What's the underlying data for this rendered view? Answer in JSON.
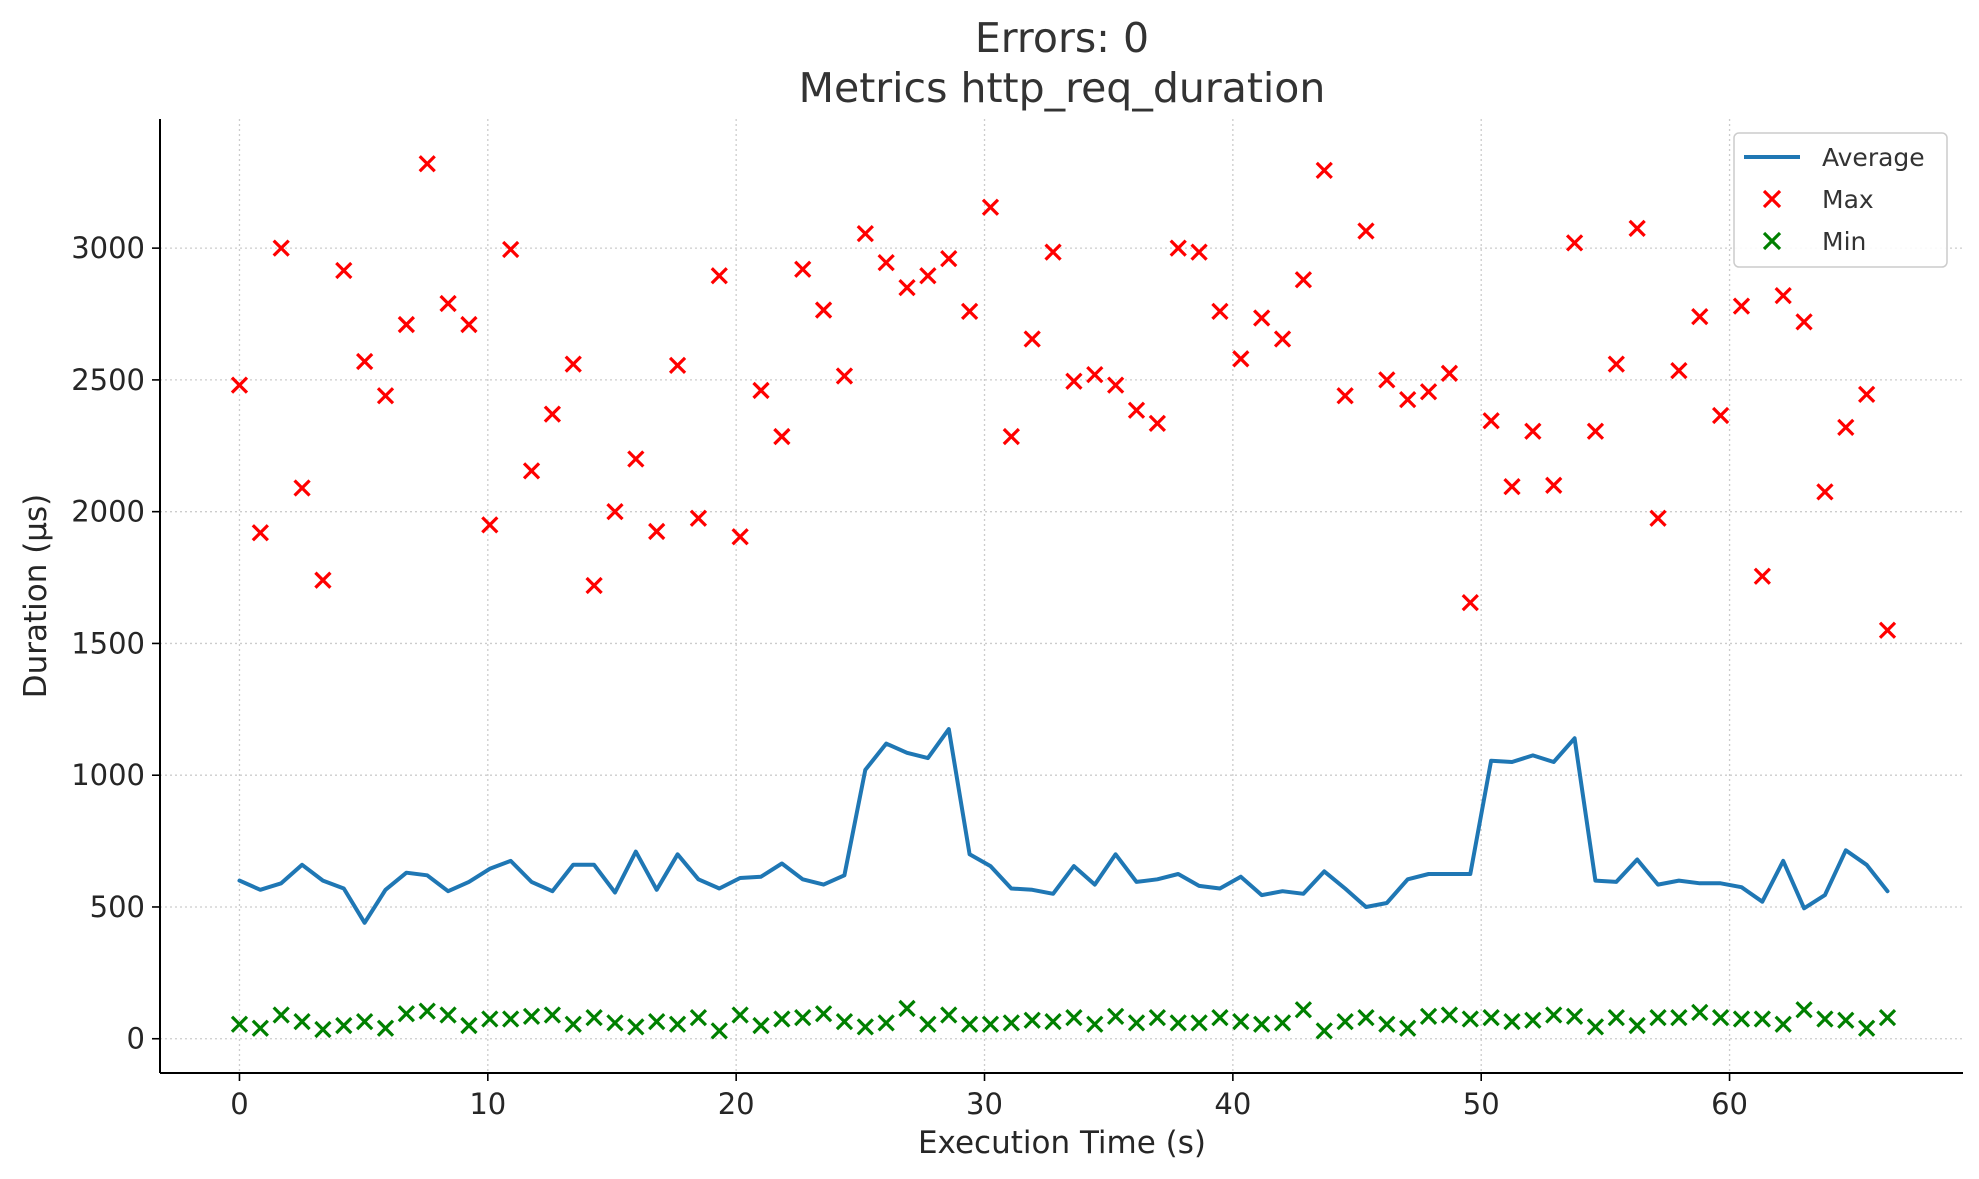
{
  "chart_data": {
    "type": "line",
    "title": "Errors: 0",
    "subtitle": "Metrics http_req_duration",
    "xlabel": "Execution Time (s)",
    "ylabel": "Duration (µs)",
    "xlim": [
      -3.2,
      69.4
    ],
    "ylim": [
      -130,
      3490
    ],
    "xticks": [
      0,
      10,
      20,
      30,
      40,
      50,
      60
    ],
    "yticks": [
      0,
      500,
      1000,
      1500,
      2000,
      2500,
      3000
    ],
    "grid": true,
    "legend_position": "top-right",
    "x": [
      0,
      0.84,
      1.68,
      2.52,
      3.36,
      4.2,
      5.04,
      5.88,
      6.72,
      7.56,
      8.4,
      9.24,
      10.08,
      10.92,
      11.76,
      12.6,
      13.44,
      14.28,
      15.12,
      15.96,
      16.8,
      17.64,
      18.48,
      19.32,
      20.16,
      21.0,
      21.84,
      22.68,
      23.52,
      24.36,
      25.2,
      26.04,
      26.88,
      27.72,
      28.56,
      29.4,
      30.24,
      31.08,
      31.92,
      32.76,
      33.6,
      34.44,
      35.28,
      36.12,
      36.96,
      37.8,
      38.64,
      39.48,
      40.32,
      41.16,
      42.0,
      42.84,
      43.68,
      44.52,
      45.36,
      46.2,
      47.04,
      47.88,
      48.72,
      49.56,
      50.4,
      51.24,
      52.08,
      52.92,
      53.76,
      54.6,
      55.44,
      56.28,
      57.12,
      57.96,
      58.8,
      59.64,
      60.48,
      61.32,
      62.16,
      63.0,
      63.84,
      64.68,
      65.52,
      66.36
    ],
    "series": [
      {
        "name": "Average",
        "type": "line",
        "color": "#1f77b4",
        "values": [
          600,
          565,
          590,
          660,
          600,
          570,
          440,
          565,
          630,
          620,
          560,
          595,
          645,
          675,
          595,
          560,
          660,
          660,
          555,
          710,
          565,
          700,
          605,
          570,
          610,
          615,
          665,
          605,
          585,
          620,
          1020,
          1120,
          1085,
          1065,
          1175,
          700,
          655,
          570,
          565,
          550,
          655,
          585,
          700,
          595,
          605,
          625,
          580,
          570,
          615,
          545,
          560,
          550,
          635,
          570,
          500,
          515,
          605,
          625,
          625,
          625,
          1055,
          1050,
          1075,
          1050,
          1140,
          600,
          595,
          680,
          585,
          600,
          590,
          590,
          575,
          520,
          675,
          495,
          545,
          715,
          660,
          560
        ]
      },
      {
        "name": "Max",
        "type": "scatter",
        "marker": "x",
        "color": "#ff0000",
        "values": [
          2480,
          1920,
          3000,
          2090,
          1740,
          2915,
          2570,
          2440,
          2710,
          3320,
          2790,
          2710,
          1950,
          2995,
          2155,
          2370,
          2560,
          1720,
          2000,
          2200,
          1925,
          2555,
          1975,
          2895,
          1905,
          2460,
          2285,
          2920,
          2765,
          2515,
          3055,
          2945,
          2850,
          2895,
          2960,
          2760,
          3155,
          2285,
          2655,
          2985,
          2495,
          2520,
          2480,
          2385,
          2335,
          3000,
          2985,
          2760,
          2580,
          2735,
          2655,
          2880,
          3295,
          2440,
          3065,
          2500,
          2425,
          2455,
          2525,
          1655,
          2345,
          2095,
          2305,
          2100,
          3020,
          2305,
          2560,
          3075,
          1975,
          2535,
          2740,
          2365,
          2780,
          1755,
          2820,
          2720,
          2075,
          2320,
          2445,
          1550
        ]
      },
      {
        "name": "Min",
        "type": "scatter",
        "marker": "x",
        "color": "#008000",
        "values": [
          55,
          40,
          90,
          65,
          35,
          50,
          65,
          40,
          95,
          105,
          90,
          50,
          75,
          75,
          85,
          90,
          55,
          80,
          60,
          45,
          65,
          55,
          80,
          30,
          90,
          50,
          75,
          80,
          95,
          65,
          45,
          60,
          115,
          55,
          90,
          55,
          55,
          60,
          70,
          65,
          80,
          55,
          85,
          60,
          80,
          60,
          60,
          80,
          65,
          55,
          60,
          110,
          30,
          65,
          80,
          55,
          40,
          85,
          90,
          75,
          80,
          65,
          70,
          90,
          85,
          45,
          80,
          50,
          80,
          80,
          100,
          80,
          75,
          75,
          55,
          110,
          75,
          70,
          40,
          80
        ]
      }
    ]
  }
}
